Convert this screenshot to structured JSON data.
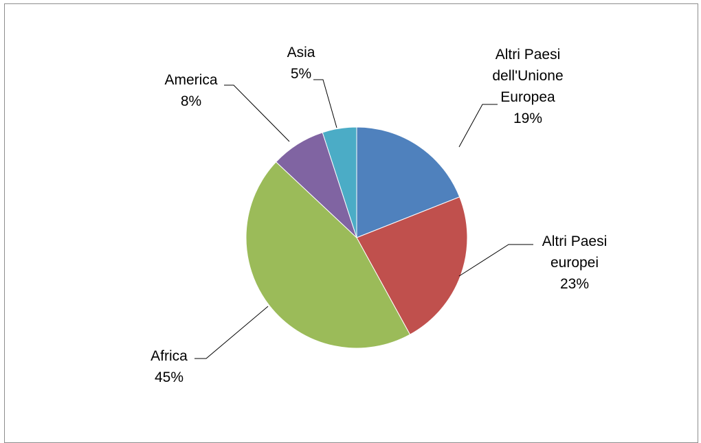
{
  "chart_data": {
    "type": "pie",
    "title": "",
    "slices": [
      {
        "label_lines": [
          "Altri Paesi",
          "dell'Unione",
          "Europea"
        ],
        "percent_label": "19%",
        "value": 19,
        "color": "#4F81BD"
      },
      {
        "label_lines": [
          "Altri Paesi",
          "europei"
        ],
        "percent_label": "23%",
        "value": 23,
        "color": "#C0504D"
      },
      {
        "label_lines": [
          "Africa"
        ],
        "percent_label": "45%",
        "value": 45,
        "color": "#9BBB59"
      },
      {
        "label_lines": [
          "America"
        ],
        "percent_label": "8%",
        "value": 8,
        "color": "#8064A2"
      },
      {
        "label_lines": [
          "Asia"
        ],
        "percent_label": "5%",
        "value": 5,
        "color": "#4BACC6"
      }
    ],
    "legend": "none"
  }
}
